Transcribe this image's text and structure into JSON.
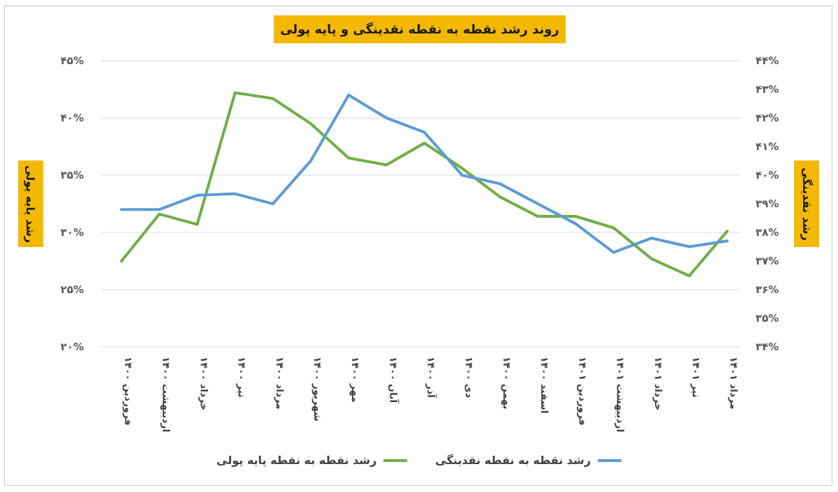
{
  "chart_data": {
    "type": "line",
    "title": "روند رشد نقطه به نقطه نقدینگی و پایه پولی",
    "ylabel_left": "رشد پایه پولی",
    "ylabel_right": "رشد نقدینگی",
    "categories": [
      "فروردین ۱۴۰۰",
      "اردیبهشت ۱۴۰۰",
      "خرداد ۱۴۰۰",
      "تیر ۱۴۰۰",
      "مرداد ۱۴۰۰",
      "شهریور ۱۴۰۰",
      "مهر ۱۴۰۰",
      "آبان ۱۴۰۰",
      "آذر ۱۴۰۰",
      "دی ۱۴۰۰",
      "بهمن ۱۴۰۰",
      "اسفند ۱۴۰۰",
      "فروردین ۱۴۰۱",
      "اردیبهشت ۱۴۰۱",
      "خرداد ۱۴۰۱",
      "تیر ۱۴۰۱",
      "مرداد ۱۴۰۱"
    ],
    "y_left": {
      "min": 20,
      "max": 45,
      "step": 5,
      "tick_labels": [
        "۲۰%",
        "۲۵%",
        "۳۰%",
        "۳۵%",
        "۴۰%",
        "۴۵%"
      ]
    },
    "y_right": {
      "min": 34,
      "max": 44,
      "step": 1,
      "tick_labels": [
        "۳۴%",
        "۳۵%",
        "۳۶%",
        "۳۷%",
        "۳۸%",
        "۳۹%",
        "۴۰%",
        "۴۱%",
        "۴۲%",
        "۴۳%",
        "۴۴%"
      ]
    },
    "series": [
      {
        "name": "رشد نقطه به نقطه پایه پولی",
        "axis": "left",
        "color": "#70ad47",
        "values": [
          27.5,
          31.6,
          30.7,
          42.2,
          41.7,
          39.5,
          36.5,
          35.9,
          37.8,
          35.6,
          33.1,
          31.4,
          31.4,
          30.4,
          27.7,
          26.2,
          30.1
        ]
      },
      {
        "name": "رشد نقطه به نقطه نقدینگی",
        "axis": "right",
        "color": "#5b9bd5",
        "values": [
          38.8,
          38.8,
          39.3,
          39.35,
          39.0,
          40.5,
          42.8,
          42.0,
          41.5,
          40.0,
          39.7,
          39.0,
          38.3,
          37.3,
          37.8,
          37.5,
          37.7
        ]
      }
    ],
    "legend_position": "bottom",
    "grid": "horizontal"
  }
}
